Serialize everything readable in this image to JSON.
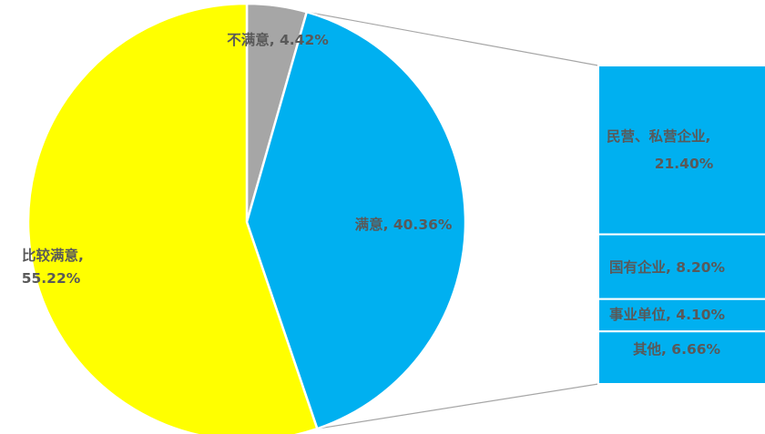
{
  "chart_data": {
    "type": "bar-of-pie",
    "title": "",
    "pie": {
      "slices": [
        {
          "name": "不满意",
          "value": 4.42,
          "label": "不满意, 4.42%",
          "color": "#a6a6a6"
        },
        {
          "name": "满意",
          "value": 40.36,
          "label": "满意, 40.36%",
          "color": "#00b0f0"
        },
        {
          "name": "比较满意",
          "value": 55.22,
          "label_line1": "比较满意,",
          "label_line2": "55.22%",
          "color": "#ffff00"
        }
      ]
    },
    "breakdown_bar": {
      "of_slice": "满意",
      "segments": [
        {
          "name": "民营、私营企业",
          "value": 21.4,
          "label_line1": "民营、私营企业,",
          "label_line2": "21.40%"
        },
        {
          "name": "国有企业",
          "value": 8.2,
          "label": "国有企业, 8.20%"
        },
        {
          "name": "事业单位",
          "value": 4.1,
          "label": "事业单位, 4.10%"
        },
        {
          "name": "其他",
          "value": 6.66,
          "label": "其他, 6.66%"
        }
      ],
      "color": "#00b0f0"
    },
    "label_color": "#595959",
    "connector_color": "#a6a6a6"
  }
}
